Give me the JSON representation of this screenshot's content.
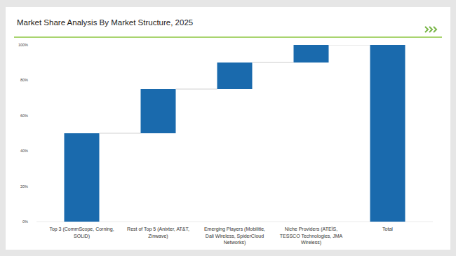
{
  "chart_data": {
    "type": "waterfall",
    "title": "Market Share Analysis By Market Structure, 2025",
    "categories": [
      "Top 3 (CommScope, Corning, SOLiD)",
      "Rest of Top 5 (Anixter, AT&T, Zinwave)",
      "Emerging Players (Mobilitie, Dali Wireless, SpiderCloud Networks)",
      "Niche Providers (ATEÏS, TESSCO Technologies, JMA Wireless)",
      "Total"
    ],
    "values": [
      50,
      25,
      15,
      10,
      100
    ],
    "color": "#1a6aad",
    "ylim": [
      0,
      100
    ],
    "yticks": [
      {
        "value": 0,
        "label": "0%"
      },
      {
        "value": 20,
        "label": "20%"
      },
      {
        "value": 40,
        "label": "40%"
      },
      {
        "value": 60,
        "label": "60%"
      },
      {
        "value": 80,
        "label": "80%"
      },
      {
        "value": 100,
        "label": "100%"
      }
    ],
    "grid": false
  }
}
